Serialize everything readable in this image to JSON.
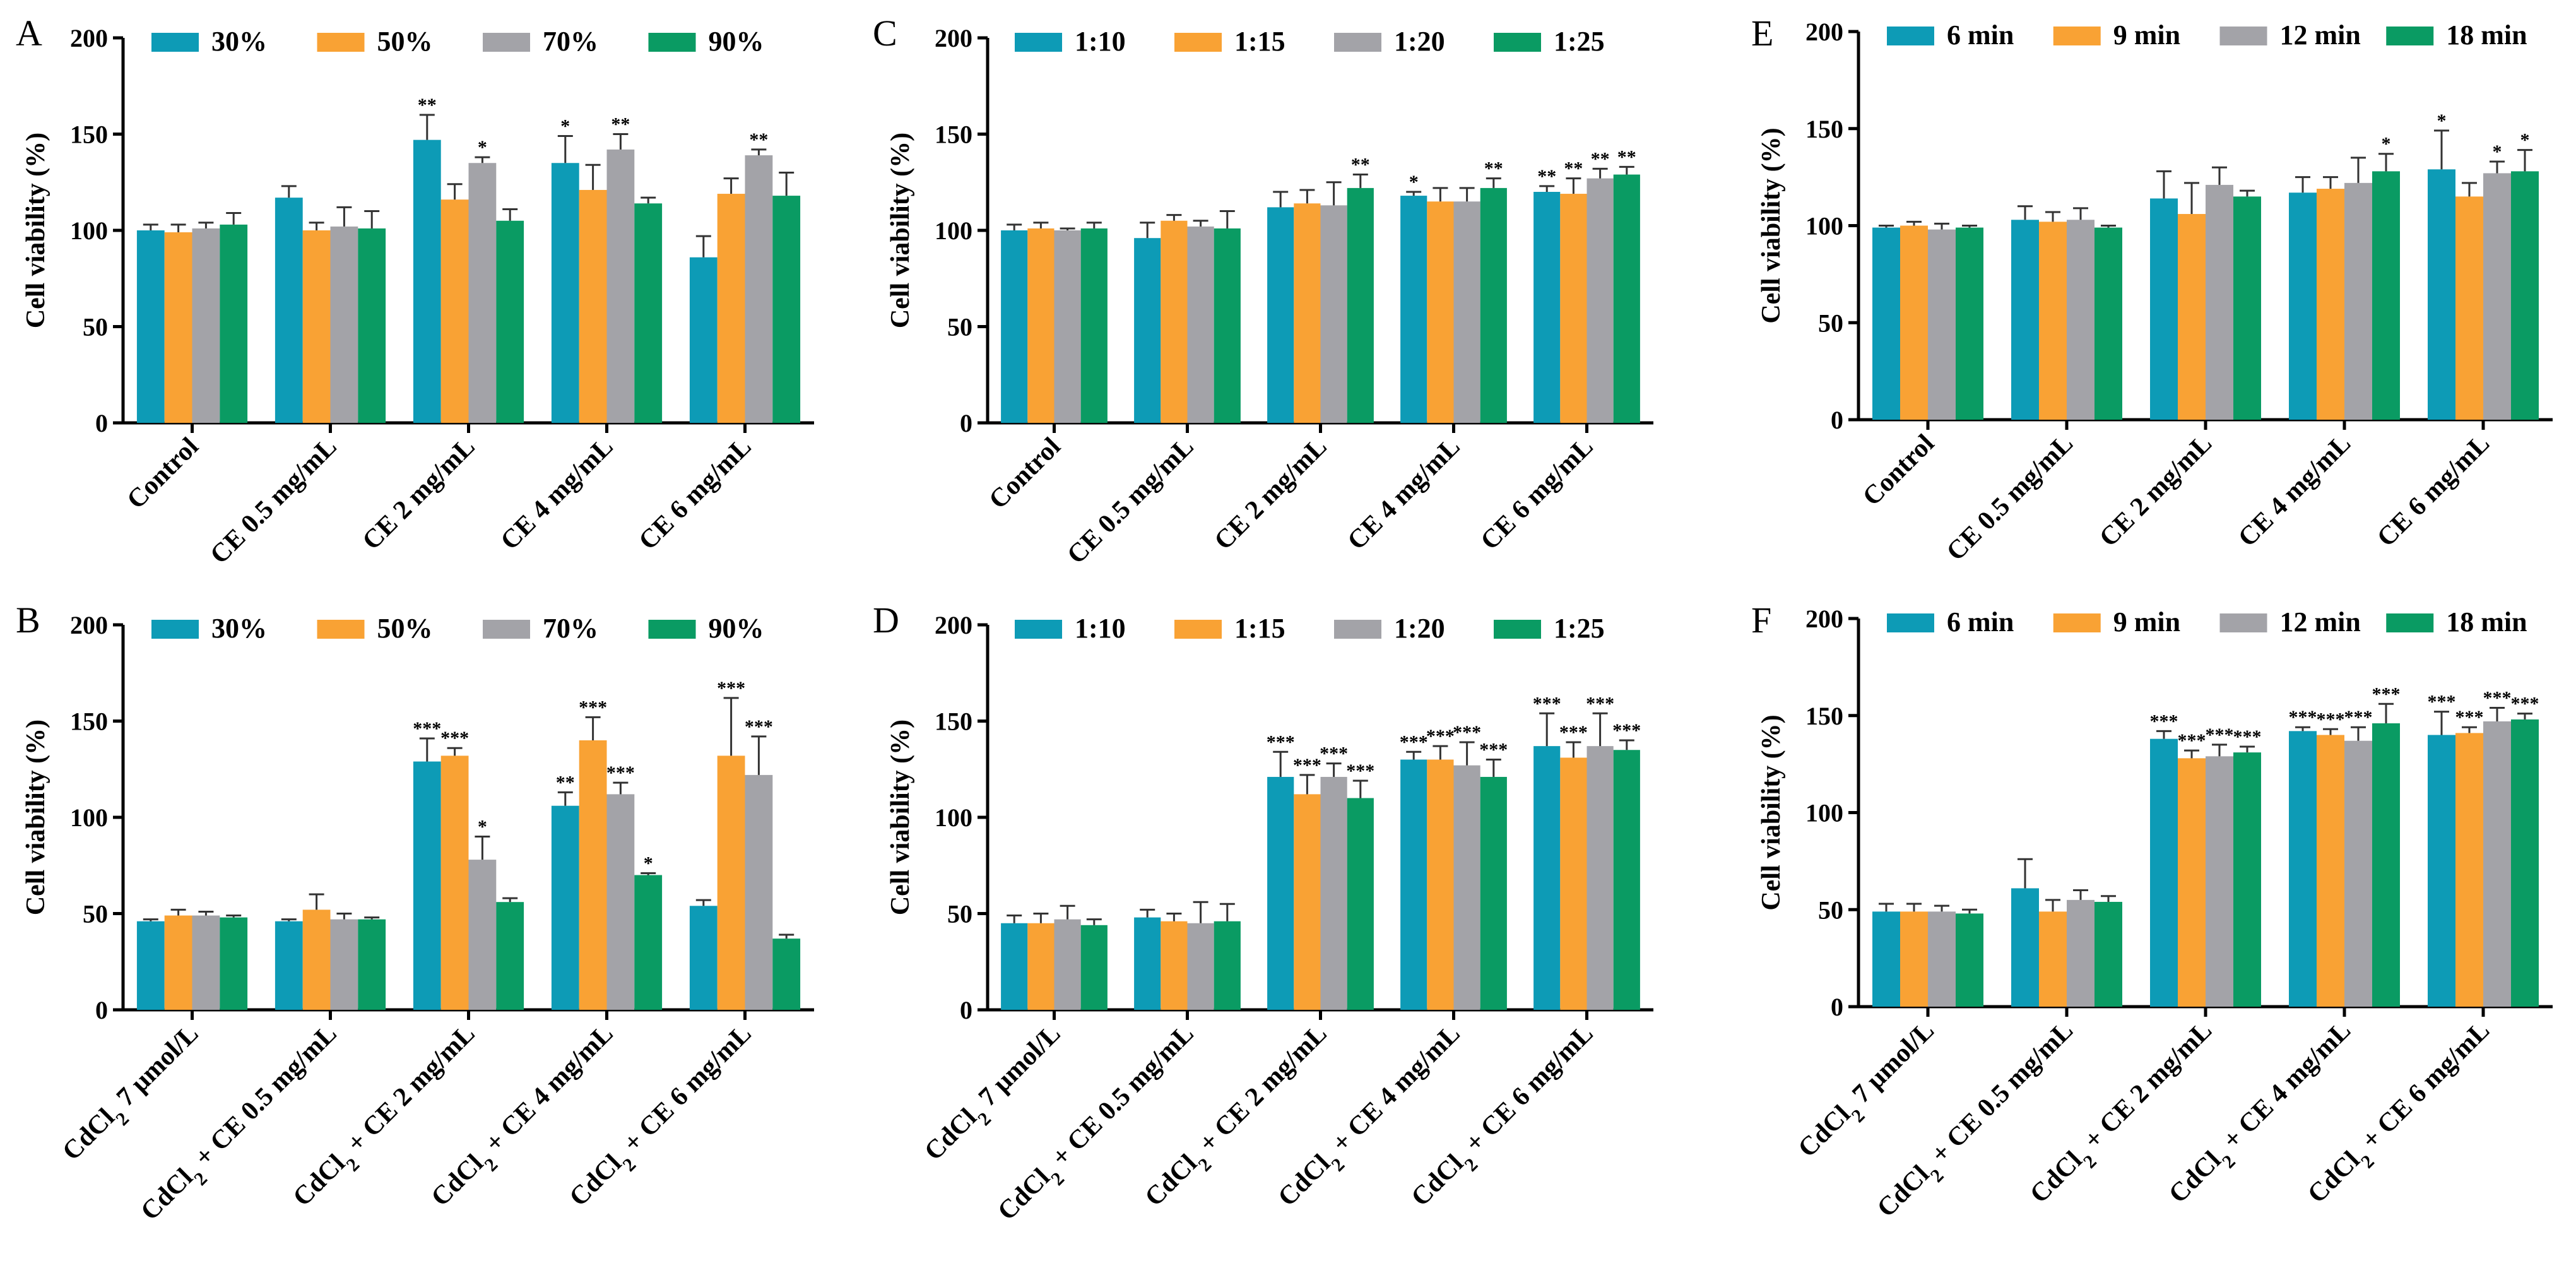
{
  "colors": {
    "s1": "#0d9bb6",
    "s2": "#f9a234",
    "s3": "#a3a3a8",
    "s4": "#0a9b63"
  },
  "chart_data": [
    {
      "panel": "A",
      "type": "bar",
      "ylabel": "Cell viability (%)",
      "ylim": [
        0,
        200
      ],
      "yticks": [
        "0",
        "50",
        "100",
        "150",
        "200"
      ],
      "legend": [
        "30%",
        "50%",
        "70%",
        "90%"
      ],
      "categories": [
        {
          "parts": [
            {
              "t": "Control"
            }
          ]
        },
        {
          "parts": [
            {
              "t": "CE 0.5 mg/mL"
            }
          ]
        },
        {
          "parts": [
            {
              "t": "CE 2 mg/mL"
            }
          ]
        },
        {
          "parts": [
            {
              "t": "CE 4 mg/mL"
            }
          ]
        },
        {
          "parts": [
            {
              "t": "CE 6 mg/mL"
            }
          ]
        }
      ],
      "series": [
        {
          "name": "30%",
          "values": [
            100,
            117,
            147,
            135,
            86
          ],
          "errors": [
            3,
            6,
            13,
            14,
            11
          ],
          "sig": [
            "",
            "",
            "**",
            "*",
            ""
          ]
        },
        {
          "name": "50%",
          "values": [
            99,
            100,
            116,
            121,
            119
          ],
          "errors": [
            4,
            4,
            8,
            13,
            8
          ],
          "sig": [
            "",
            "",
            "",
            "",
            ""
          ]
        },
        {
          "name": "70%",
          "values": [
            101,
            102,
            135,
            142,
            139
          ],
          "errors": [
            3,
            10,
            3,
            8,
            3
          ],
          "sig": [
            "",
            "",
            "*",
            "**",
            "**"
          ]
        },
        {
          "name": "90%",
          "values": [
            103,
            101,
            105,
            114,
            118
          ],
          "errors": [
            6,
            9,
            6,
            3,
            12
          ],
          "sig": [
            "",
            "",
            "",
            "",
            ""
          ]
        }
      ]
    },
    {
      "panel": "B",
      "type": "bar",
      "ylabel": "Cell viability (%)",
      "ylim": [
        0,
        200
      ],
      "yticks": [
        "0",
        "50",
        "100",
        "150",
        "200"
      ],
      "legend": [
        "30%",
        "50%",
        "70%",
        "90%"
      ],
      "categories": [
        {
          "parts": [
            {
              "t": "CdCl"
            },
            {
              "t": "2",
              "sub": true
            },
            {
              "t": " 7 μmol/L"
            }
          ]
        },
        {
          "parts": [
            {
              "t": "CdCl"
            },
            {
              "t": "2",
              "sub": true
            },
            {
              "t": " + CE 0.5 mg/mL"
            }
          ]
        },
        {
          "parts": [
            {
              "t": "CdCl"
            },
            {
              "t": "2",
              "sub": true
            },
            {
              "t": " + CE 2 mg/mL"
            }
          ]
        },
        {
          "parts": [
            {
              "t": "CdCl"
            },
            {
              "t": "2",
              "sub": true
            },
            {
              "t": " + CE 4 mg/mL"
            }
          ]
        },
        {
          "parts": [
            {
              "t": "CdCl"
            },
            {
              "t": "2",
              "sub": true
            },
            {
              "t": " + CE 6 mg/mL"
            }
          ]
        }
      ],
      "series": [
        {
          "name": "30%",
          "values": [
            46,
            46,
            129,
            106,
            54
          ],
          "errors": [
            1,
            1,
            12,
            7,
            3
          ],
          "sig": [
            "",
            "",
            "***",
            "**",
            ""
          ]
        },
        {
          "name": "50%",
          "values": [
            49,
            52,
            132,
            140,
            132
          ],
          "errors": [
            3,
            8,
            4,
            12,
            30
          ],
          "sig": [
            "",
            "",
            "***",
            "***",
            "***"
          ]
        },
        {
          "name": "70%",
          "values": [
            49,
            47,
            78,
            112,
            122
          ],
          "errors": [
            2,
            3,
            12,
            6,
            20
          ],
          "sig": [
            "",
            "",
            "*",
            "***",
            "***"
          ]
        },
        {
          "name": "90%",
          "values": [
            48,
            47,
            56,
            70,
            37
          ],
          "errors": [
            1,
            1,
            2,
            1,
            2
          ],
          "sig": [
            "",
            "",
            "",
            "*",
            ""
          ]
        }
      ]
    },
    {
      "panel": "C",
      "type": "bar",
      "ylabel": "Cell viability (%)",
      "ylim": [
        0,
        200
      ],
      "yticks": [
        "0",
        "50",
        "100",
        "150",
        "200"
      ],
      "legend": [
        "1:10",
        "1:15",
        "1:20",
        "1:25"
      ],
      "categories": [
        {
          "parts": [
            {
              "t": "Control"
            }
          ]
        },
        {
          "parts": [
            {
              "t": "CE 0.5 mg/mL"
            }
          ]
        },
        {
          "parts": [
            {
              "t": "CE 2 mg/mL"
            }
          ]
        },
        {
          "parts": [
            {
              "t": "CE 4 mg/mL"
            }
          ]
        },
        {
          "parts": [
            {
              "t": "CE 6 mg/mL"
            }
          ]
        }
      ],
      "series": [
        {
          "name": "1:10",
          "values": [
            100,
            96,
            112,
            118,
            120
          ],
          "errors": [
            3,
            8,
            8,
            2,
            3
          ],
          "sig": [
            "",
            "",
            "",
            "*",
            "**"
          ]
        },
        {
          "name": "1:15",
          "values": [
            101,
            105,
            114,
            115,
            119
          ],
          "errors": [
            3,
            3,
            7,
            7,
            8
          ],
          "sig": [
            "",
            "",
            "",
            "",
            "**"
          ]
        },
        {
          "name": "1:20",
          "values": [
            100,
            102,
            113,
            115,
            127
          ],
          "errors": [
            1,
            3,
            12,
            7,
            5
          ],
          "sig": [
            "",
            "",
            "",
            "",
            "**"
          ]
        },
        {
          "name": "1:25",
          "values": [
            101,
            101,
            122,
            122,
            129
          ],
          "errors": [
            3,
            9,
            7,
            5,
            4
          ],
          "sig": [
            "",
            "",
            "**",
            "**",
            "**"
          ]
        }
      ]
    },
    {
      "panel": "D",
      "type": "bar",
      "ylabel": "Cell viability (%)",
      "ylim": [
        0,
        200
      ],
      "yticks": [
        "0",
        "50",
        "100",
        "150",
        "200"
      ],
      "legend": [
        "1:10",
        "1:15",
        "1:20",
        "1:25"
      ],
      "categories": [
        {
          "parts": [
            {
              "t": "CdCl"
            },
            {
              "t": "2",
              "sub": true
            },
            {
              "t": " 7 μmol/L"
            }
          ]
        },
        {
          "parts": [
            {
              "t": "CdCl"
            },
            {
              "t": "2",
              "sub": true
            },
            {
              "t": " + CE 0.5 mg/mL"
            }
          ]
        },
        {
          "parts": [
            {
              "t": "CdCl"
            },
            {
              "t": "2",
              "sub": true
            },
            {
              "t": " + CE 2 mg/mL"
            }
          ]
        },
        {
          "parts": [
            {
              "t": "CdCl"
            },
            {
              "t": "2",
              "sub": true
            },
            {
              "t": " + CE 4 mg/mL"
            }
          ]
        },
        {
          "parts": [
            {
              "t": "CdCl"
            },
            {
              "t": "2",
              "sub": true
            },
            {
              "t": " + CE 6 mg/mL"
            }
          ]
        }
      ],
      "series": [
        {
          "name": "1:10",
          "values": [
            45,
            48,
            121,
            130,
            137
          ],
          "errors": [
            4,
            4,
            13,
            4,
            17
          ],
          "sig": [
            "",
            "",
            "***",
            "***",
            "***"
          ]
        },
        {
          "name": "1:15",
          "values": [
            45,
            46,
            112,
            130,
            131
          ],
          "errors": [
            5,
            4,
            10,
            7,
            8
          ],
          "sig": [
            "",
            "",
            "***",
            "***",
            "***"
          ]
        },
        {
          "name": "1:20",
          "values": [
            47,
            45,
            121,
            127,
            137
          ],
          "errors": [
            7,
            11,
            7,
            12,
            17
          ],
          "sig": [
            "",
            "",
            "***",
            "***",
            "***"
          ]
        },
        {
          "name": "1:25",
          "values": [
            44,
            46,
            110,
            121,
            135
          ],
          "errors": [
            3,
            9,
            9,
            9,
            5
          ],
          "sig": [
            "",
            "",
            "***",
            "***",
            "***"
          ]
        }
      ]
    },
    {
      "panel": "E",
      "type": "bar",
      "ylabel": "Cell viability (%)",
      "ylim": [
        0,
        200
      ],
      "yticks": [
        "0",
        "50",
        "100",
        "150",
        "200"
      ],
      "legend": [
        "6 min",
        "9 min",
        "12 min",
        "18 min"
      ],
      "categories": [
        {
          "parts": [
            {
              "t": "Control"
            }
          ]
        },
        {
          "parts": [
            {
              "t": "CE 0.5 mg/mL"
            }
          ]
        },
        {
          "parts": [
            {
              "t": "CE 2 mg/mL"
            }
          ]
        },
        {
          "parts": [
            {
              "t": "CE 4 mg/mL"
            }
          ]
        },
        {
          "parts": [
            {
              "t": "CE 6 mg/mL"
            }
          ]
        }
      ],
      "series": [
        {
          "name": "6 min",
          "values": [
            99,
            103,
            114,
            117,
            129
          ],
          "errors": [
            1,
            7,
            14,
            8,
            20
          ],
          "sig": [
            "",
            "",
            "",
            "",
            "*"
          ]
        },
        {
          "name": "9 min",
          "values": [
            100,
            102,
            106,
            119,
            115
          ],
          "errors": [
            2,
            5,
            16,
            6,
            7
          ],
          "sig": [
            "",
            "",
            "",
            "",
            ""
          ]
        },
        {
          "name": "12 min",
          "values": [
            98,
            103,
            121,
            122,
            127
          ],
          "errors": [
            3,
            6,
            9,
            13,
            6
          ],
          "sig": [
            "",
            "",
            "",
            "",
            "*"
          ]
        },
        {
          "name": "18 min",
          "values": [
            99,
            99,
            115,
            128,
            128
          ],
          "errors": [
            1,
            1,
            3,
            9,
            11
          ],
          "sig": [
            "",
            "",
            "",
            "*",
            "*"
          ]
        }
      ]
    },
    {
      "panel": "F",
      "type": "bar",
      "ylabel": "Cell viability (%)",
      "ylim": [
        0,
        200
      ],
      "yticks": [
        "0",
        "50",
        "100",
        "150",
        "200"
      ],
      "legend": [
        "6 min",
        "9 min",
        "12 min",
        "18 min"
      ],
      "categories": [
        {
          "parts": [
            {
              "t": "CdCl"
            },
            {
              "t": "2",
              "sub": true
            },
            {
              "t": " 7 μmol/L"
            }
          ]
        },
        {
          "parts": [
            {
              "t": "CdCl"
            },
            {
              "t": "2",
              "sub": true
            },
            {
              "t": " + CE 0.5 mg/mL"
            }
          ]
        },
        {
          "parts": [
            {
              "t": "CdCl"
            },
            {
              "t": "2",
              "sub": true
            },
            {
              "t": " + CE 2 mg/mL"
            }
          ]
        },
        {
          "parts": [
            {
              "t": "CdCl"
            },
            {
              "t": "2",
              "sub": true
            },
            {
              "t": " + CE 4 mg/mL"
            }
          ]
        },
        {
          "parts": [
            {
              "t": "CdCl"
            },
            {
              "t": "2",
              "sub": true
            },
            {
              "t": " + CE 6 mg/mL"
            }
          ]
        }
      ],
      "series": [
        {
          "name": "6 min",
          "values": [
            49,
            61,
            138,
            142,
            140
          ],
          "errors": [
            4,
            15,
            4,
            2,
            12
          ],
          "sig": [
            "",
            "",
            "***",
            "***",
            "***"
          ]
        },
        {
          "name": "9 min",
          "values": [
            49,
            49,
            128,
            140,
            141
          ],
          "errors": [
            4,
            6,
            4,
            3,
            3
          ],
          "sig": [
            "",
            "",
            "***",
            "***",
            "***"
          ]
        },
        {
          "name": "12 min",
          "values": [
            49,
            55,
            129,
            137,
            147
          ],
          "errors": [
            3,
            5,
            6,
            7,
            7
          ],
          "sig": [
            "",
            "",
            "***",
            "***",
            "***"
          ]
        },
        {
          "name": "18 min",
          "values": [
            48,
            54,
            131,
            146,
            148
          ],
          "errors": [
            2,
            3,
            3,
            10,
            3
          ],
          "sig": [
            "",
            "",
            "***",
            "***",
            "***"
          ]
        }
      ]
    }
  ]
}
